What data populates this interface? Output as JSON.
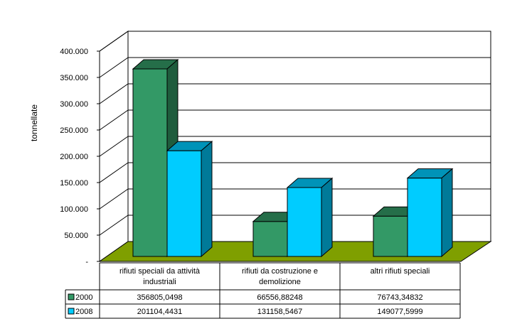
{
  "chart_data": {
    "type": "bar",
    "subtype": "3d-clustered-column-with-data-table",
    "ylabel": "tonnellate",
    "ylim": [
      0,
      400000
    ],
    "y_ticks": [
      0,
      50000,
      100000,
      150000,
      200000,
      250000,
      300000,
      350000,
      400000
    ],
    "y_tick_labels": [
      "-",
      "50.000",
      "100.000",
      "150.000",
      "200.000",
      "250.000",
      "300.000",
      "350.000",
      "400.000"
    ],
    "grid": true,
    "categories": [
      [
        "rifiuti speciali da attività",
        "industriali"
      ],
      [
        "rifiuti da costruzione e",
        "demolizione"
      ],
      [
        "altri rifiuti speciali"
      ]
    ],
    "series": [
      {
        "name": "2000",
        "values": [
          356805.0498,
          66556.88248,
          76743.34832
        ],
        "value_labels": [
          "356805,0498",
          "66556,88248",
          "76743,34832"
        ],
        "color": "#339966"
      },
      {
        "name": "2008",
        "values": [
          201104.4431,
          131158.5467,
          149077.5999
        ],
        "value_labels": [
          "201104,4431",
          "131158,5467",
          "149077,5999"
        ],
        "color": "#00ccff"
      }
    ],
    "floor_color": "#7f9f00",
    "legend": "data-table"
  }
}
